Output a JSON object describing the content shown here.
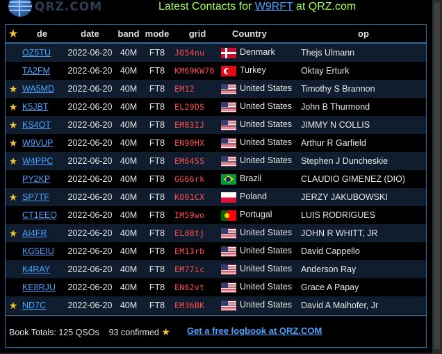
{
  "header": {
    "logo_text": "QRZ.COM",
    "title_prefix": "Latest Contacts for",
    "callsign": "W9RFT",
    "title_suffix": "at QRZ.com"
  },
  "columns": {
    "de": "de",
    "date": "date",
    "band": "band",
    "mode": "mode",
    "grid": "grid",
    "country": "Country",
    "op": "op"
  },
  "rows": [
    {
      "confirmed": false,
      "de": "OZ5TU",
      "date": "2022-06-20",
      "band": "40M",
      "mode": "FT8",
      "grid": "JO54nu",
      "flag": "flag-dk",
      "country": "Denmark",
      "op": "Thejs Ulmann"
    },
    {
      "confirmed": false,
      "de": "TA2FM",
      "date": "2022-06-20",
      "band": "40M",
      "mode": "FT8",
      "grid": "KM69KW76",
      "flag": "flag-tr",
      "country": "Turkey",
      "op": "Oktay Erturk"
    },
    {
      "confirmed": true,
      "de": "WA5MD",
      "date": "2022-06-20",
      "band": "40M",
      "mode": "FT8",
      "grid": "EM12",
      "flag": "flag-us",
      "country": "United States",
      "op": "Timothy S Brannon"
    },
    {
      "confirmed": true,
      "de": "K5JBT",
      "date": "2022-06-20",
      "band": "40M",
      "mode": "FT8",
      "grid": "EL29DS",
      "flag": "flag-us",
      "country": "United States",
      "op": "John B Thurmond"
    },
    {
      "confirmed": true,
      "de": "KS4OT",
      "date": "2022-06-20",
      "band": "40M",
      "mode": "FT8",
      "grid": "EM83IJ",
      "flag": "flag-us",
      "country": "United States",
      "op": "JIMMY N COLLIS"
    },
    {
      "confirmed": true,
      "de": "W9VUP",
      "date": "2022-06-20",
      "band": "40M",
      "mode": "FT8",
      "grid": "EN90HX",
      "flag": "flag-us",
      "country": "United States",
      "op": "Arthur R Garfield"
    },
    {
      "confirmed": true,
      "de": "W4PPC",
      "date": "2022-06-20",
      "band": "40M",
      "mode": "FT8",
      "grid": "EM64SS",
      "flag": "flag-us",
      "country": "United States",
      "op": "Stephen J Duncheskie"
    },
    {
      "confirmed": false,
      "de": "PY2KP",
      "date": "2022-06-20",
      "band": "40M",
      "mode": "FT8",
      "grid": "GG66rk",
      "flag": "flag-br",
      "country": "Brazil",
      "op": "CLAUDIO GIMENEZ (DIO)"
    },
    {
      "confirmed": true,
      "de": "SP7TF",
      "date": "2022-06-20",
      "band": "40M",
      "mode": "FT8",
      "grid": "KO01CX",
      "flag": "flag-pl",
      "country": "Poland",
      "op": "JERZY JAKUBOWSKI"
    },
    {
      "confirmed": false,
      "de": "CT1EEQ",
      "date": "2022-06-20",
      "band": "40M",
      "mode": "FT8",
      "grid": "IM59wo",
      "flag": "flag-pt",
      "country": "Portugal",
      "op": "LUIS RODRIGUES"
    },
    {
      "confirmed": true,
      "de": "AI4FR",
      "date": "2022-06-20",
      "band": "40M",
      "mode": "FT8",
      "grid": "EL88tj",
      "flag": "flag-us",
      "country": "United States",
      "op": "JOHN R WHITT, JR"
    },
    {
      "confirmed": false,
      "de": "KG5EIU",
      "date": "2022-06-20",
      "band": "40M",
      "mode": "FT8",
      "grid": "EM13rb",
      "flag": "flag-us",
      "country": "United States",
      "op": "David Cappello"
    },
    {
      "confirmed": false,
      "de": "K4RAY",
      "date": "2022-06-20",
      "band": "40M",
      "mode": "FT8",
      "grid": "EM77ic",
      "flag": "flag-us",
      "country": "United States",
      "op": "Anderson Ray"
    },
    {
      "confirmed": false,
      "de": "KE8RJU",
      "date": "2022-06-20",
      "band": "40M",
      "mode": "FT8",
      "grid": "EN62vt",
      "flag": "flag-us",
      "country": "United States",
      "op": "Grace A Papay"
    },
    {
      "confirmed": true,
      "de": "ND7C",
      "date": "2022-06-20",
      "band": "40M",
      "mode": "FT8",
      "grid": "EM36BK",
      "flag": "flag-us",
      "country": "United States",
      "op": "David A Maihofer, Jr"
    }
  ],
  "footer": {
    "totals_text": "Book Totals: 125 QSOs",
    "confirmed_text": "93 confirmed",
    "logbook_link": "Get a free logbook at QRZ.COM"
  },
  "colors": {
    "title": "#9fff5a",
    "link": "#4aa3ff",
    "grid": "#ff4d4d",
    "star": "#f3c533",
    "border": "#2f6fa8"
  },
  "icons": {
    "confirmed": "star-icon",
    "country": "flag-icon"
  }
}
